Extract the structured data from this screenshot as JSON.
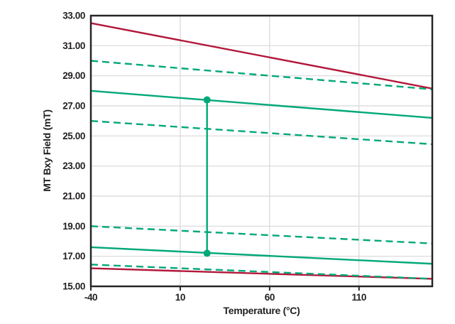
{
  "chart_data": {
    "type": "line",
    "xlabel": "Temperature (°C)",
    "ylabel": "MT Bxy Field (mT)",
    "xlim": [
      -40,
      151
    ],
    "ylim": [
      15,
      33
    ],
    "x_ticks": [
      -40,
      10,
      60,
      110
    ],
    "x_tick_labels": [
      "-40",
      "10",
      "60",
      "110"
    ],
    "y_ticks": [
      15,
      17,
      19,
      21,
      23,
      25,
      27,
      29,
      31,
      33
    ],
    "y_tick_labels": [
      "15.00",
      "17.00",
      "19.00",
      "21.00",
      "23.00",
      "25.00",
      "27.00",
      "29.00",
      "31.00",
      "33.00"
    ],
    "grid": true,
    "legend": "none",
    "colors": {
      "green": "#00a878",
      "red": "#b2173a",
      "grid": "#d8d8d8",
      "border": "#262626",
      "text": "#231f20"
    },
    "series": [
      {
        "name": "red-solid-upper",
        "color": "#b2173a",
        "style": "solid",
        "x": [
          -40,
          151
        ],
        "y": [
          32.5,
          28.15
        ]
      },
      {
        "name": "green-dashed-1",
        "color": "#00a878",
        "style": "dashed",
        "x": [
          -40,
          151
        ],
        "y": [
          30.0,
          28.1
        ]
      },
      {
        "name": "green-solid-upper",
        "color": "#00a878",
        "style": "solid",
        "x": [
          -40,
          151
        ],
        "y": [
          28.0,
          26.2
        ]
      },
      {
        "name": "green-dashed-2",
        "color": "#00a878",
        "style": "dashed",
        "x": [
          -40,
          151
        ],
        "y": [
          26.0,
          24.45
        ]
      },
      {
        "name": "green-dashed-3",
        "color": "#00a878",
        "style": "dashed",
        "x": [
          -40,
          151
        ],
        "y": [
          19.0,
          17.85
        ]
      },
      {
        "name": "red-solid-lower",
        "color": "#b2173a",
        "style": "solid",
        "x": [
          -40,
          151
        ],
        "y": [
          16.2,
          15.5
        ]
      },
      {
        "name": "green-solid-lower",
        "color": "#00a878",
        "style": "solid",
        "x": [
          -40,
          151
        ],
        "y": [
          17.6,
          16.5
        ]
      },
      {
        "name": "green-dashed-4",
        "color": "#00a878",
        "style": "dashed",
        "x": [
          -40,
          151
        ],
        "y": [
          16.45,
          15.5
        ]
      }
    ],
    "annotation": {
      "type": "vertical-range",
      "x": 25,
      "y_from": 17.2,
      "y_to": 27.4,
      "color": "#00a878",
      "marker": "circle",
      "marker_radius": 5
    }
  }
}
